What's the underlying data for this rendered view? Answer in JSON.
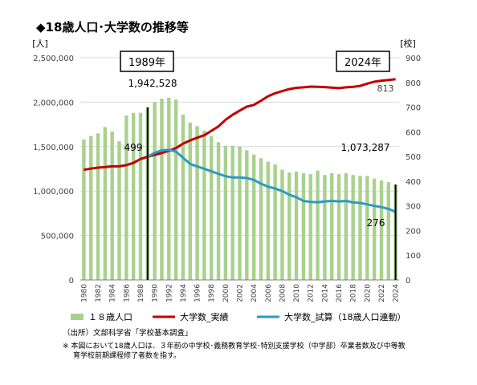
{
  "title": "◆18歳人口･大学数の推移等",
  "chart_data": {
    "type": "bar+line",
    "left_unit": "[人]",
    "right_unit": "[校]",
    "left_ticks": [
      "0",
      "500,000",
      "1,000,000",
      "1,500,000",
      "2,000,000",
      "2,500,000"
    ],
    "right_ticks": [
      "0",
      "100",
      "200",
      "300",
      "400",
      "500",
      "600",
      "700",
      "800",
      "900"
    ],
    "ylim_left": [
      0,
      2500000
    ],
    "ylim_right": [
      0,
      900
    ],
    "x": [
      1980,
      1981,
      1982,
      1983,
      1984,
      1985,
      1986,
      1987,
      1988,
      1989,
      1990,
      1991,
      1992,
      1993,
      1994,
      1995,
      1996,
      1997,
      1998,
      1999,
      2000,
      2001,
      2002,
      2003,
      2004,
      2005,
      2006,
      2007,
      2008,
      2009,
      2010,
      2011,
      2012,
      2013,
      2014,
      2015,
      2016,
      2017,
      2018,
      2019,
      2020,
      2021,
      2022,
      2023,
      2024
    ],
    "x_tick_labels": [
      "1980",
      "1982",
      "1984",
      "1986",
      "1988",
      "1990",
      "1992",
      "1994",
      "1996",
      "1998",
      "2000",
      "2002",
      "2004",
      "2006",
      "2008",
      "2010",
      "2012",
      "2014",
      "2016",
      "2018",
      "2020",
      "2022",
      "2024"
    ],
    "series": [
      {
        "name": "１８歳人口",
        "axis": "left",
        "color": "#a9d18e",
        "values": [
          1580000,
          1620000,
          1650000,
          1720000,
          1670000,
          1560000,
          1850000,
          1880000,
          1880000,
          1942528,
          2000000,
          2040000,
          2050000,
          2030000,
          1860000,
          1770000,
          1730000,
          1680000,
          1620000,
          1550000,
          1510000,
          1510000,
          1500000,
          1460000,
          1410000,
          1370000,
          1330000,
          1300000,
          1240000,
          1210000,
          1220000,
          1200000,
          1190000,
          1230000,
          1180000,
          1200000,
          1190000,
          1200000,
          1180000,
          1170000,
          1170000,
          1140000,
          1120000,
          1100000,
          1073287
        ]
      },
      {
        "name": "大学数_実績",
        "axis": "right",
        "color": "#c00000",
        "values": [
          446,
          451,
          455,
          457,
          460,
          460,
          465,
          474,
          490,
          499,
          507,
          514,
          523,
          534,
          552,
          565,
          576,
          586,
          604,
          622,
          649,
          669,
          686,
          702,
          709,
          726,
          744,
          756,
          765,
          773,
          778,
          780,
          783,
          782,
          781,
          779,
          777,
          780,
          782,
          786,
          795,
          803,
          807,
          810,
          813
        ]
      },
      {
        "name": "大学数_試算（18歳人口連動）",
        "axis": "right",
        "color": "#2e9ac4",
        "values": [
          null,
          null,
          null,
          null,
          null,
          null,
          null,
          null,
          null,
          499,
          515,
          525,
          527,
          520,
          495,
          470,
          460,
          450,
          440,
          430,
          420,
          415,
          415,
          413,
          405,
          390,
          378,
          370,
          360,
          345,
          335,
          320,
          316,
          315,
          318,
          320,
          318,
          320,
          314,
          312,
          306,
          300,
          295,
          288,
          276
        ]
      }
    ],
    "annotations": {
      "start_year_box": "1989年",
      "end_year_box": "2024年",
      "pop_1989": "1,942,528",
      "pop_2024": "1,073,287",
      "univ_1989": "499",
      "univ_2024_actual": "813",
      "univ_2024_trial": "276"
    }
  },
  "legend": [
    "１８歳人口",
    "大学数_実績",
    "大学数_試算（18歳人口連動）"
  ],
  "source": "（出所）文部科学省「学校基本調査」",
  "note_line1": "※ 本図において18歳人口は、３年前の中学校･義務教育学校･特別支援学校（中学部）卒業者数及び中等教",
  "note_line2": "育学校前期課程修了者数を指す。"
}
